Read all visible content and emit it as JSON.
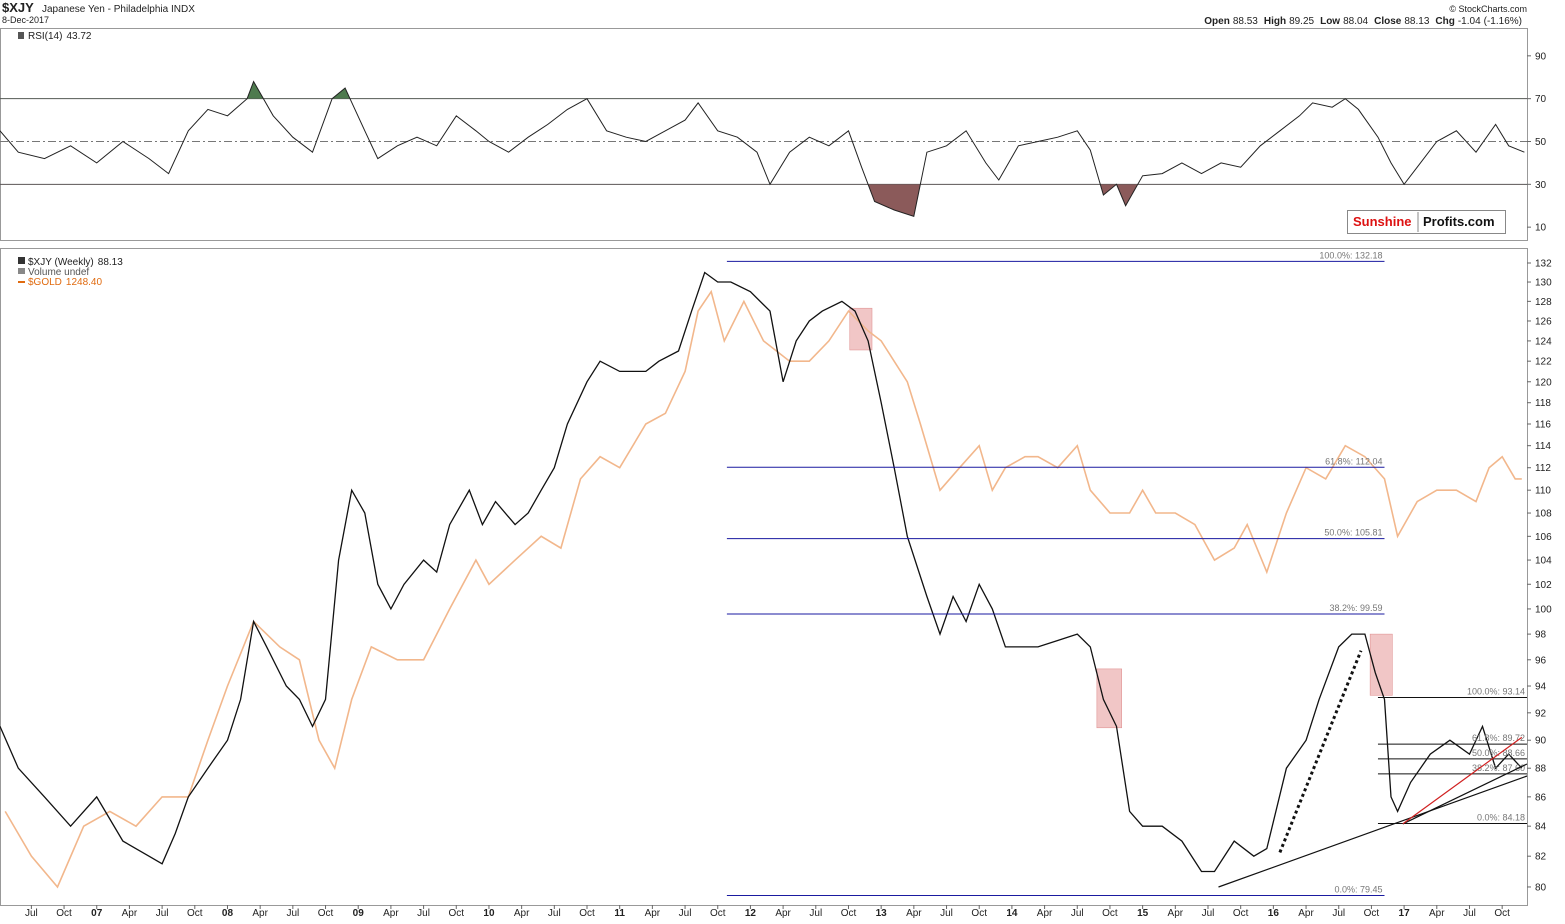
{
  "header": {
    "symbol": "$XJY",
    "name": "Japanese Yen - Philadelphia INDX",
    "date": "8-Dec-2017",
    "quote": [
      {
        "label": "Open",
        "value": 88.53
      },
      {
        "label": "High",
        "value": 89.25
      },
      {
        "label": "Low",
        "value": 88.04
      },
      {
        "label": "Close",
        "value": 88.13
      }
    ],
    "change": {
      "label": "Chg",
      "value": -1.04,
      "pct": "(-1.16%)"
    },
    "credit": "© StockCharts.com",
    "logo": [
      "Sunshine",
      "Profits.com"
    ]
  },
  "chart_data": [
    {
      "type": "line",
      "name": "RSI(14)",
      "last": 43.72,
      "color": "#222222",
      "xlim": [
        2006.26,
        2017.94
      ],
      "ylim": [
        4,
        103
      ],
      "yticks": [
        10,
        30,
        50,
        70,
        90
      ],
      "levels": [
        70,
        30
      ],
      "midline": 50,
      "fill_colors": [
        "#4e7a4e",
        "#8b5a5a"
      ],
      "x": [
        2006.26,
        2006.4,
        2006.6,
        2006.8,
        2007.0,
        2007.2,
        2007.4,
        2007.55,
        2007.7,
        2007.85,
        2008.0,
        2008.15,
        2008.2,
        2008.35,
        2008.5,
        2008.65,
        2008.8,
        2008.9,
        2009.05,
        2009.15,
        2009.3,
        2009.45,
        2009.6,
        2009.75,
        2009.9,
        2010.0,
        2010.15,
        2010.3,
        2010.45,
        2010.6,
        2010.75,
        2010.9,
        2011.05,
        2011.2,
        2011.35,
        2011.5,
        2011.6,
        2011.75,
        2011.9,
        2012.05,
        2012.15,
        2012.3,
        2012.45,
        2012.6,
        2012.75,
        2012.85,
        2012.95,
        2013.1,
        2013.25,
        2013.35,
        2013.5,
        2013.65,
        2013.8,
        2013.9,
        2014.05,
        2014.2,
        2014.35,
        2014.5,
        2014.6,
        2014.7,
        2014.8,
        2014.87,
        2015.0,
        2015.15,
        2015.3,
        2015.45,
        2015.6,
        2015.75,
        2015.9,
        2016.05,
        2016.2,
        2016.3,
        2016.45,
        2016.55,
        2016.65,
        2016.8,
        2016.9,
        2017.0,
        2017.1,
        2017.25,
        2017.4,
        2017.55,
        2017.7,
        2017.8,
        2017.92
      ],
      "values": [
        55,
        45,
        42,
        48,
        40,
        50,
        42,
        35,
        55,
        65,
        62,
        70,
        78,
        62,
        52,
        45,
        70,
        75,
        55,
        42,
        48,
        52,
        48,
        62,
        55,
        50,
        45,
        52,
        58,
        65,
        70,
        55,
        52,
        50,
        55,
        60,
        68,
        55,
        52,
        45,
        30,
        45,
        52,
        48,
        55,
        38,
        22,
        18,
        15,
        45,
        48,
        55,
        40,
        32,
        48,
        50,
        52,
        55,
        46,
        25,
        30,
        20,
        34,
        35,
        40,
        35,
        40,
        38,
        48,
        55,
        62,
        68,
        66,
        70,
        65,
        52,
        40,
        30,
        38,
        50,
        55,
        45,
        58,
        48,
        45
      ]
    },
    {
      "type": "line",
      "log": true,
      "xlim": [
        2006.26,
        2017.94
      ],
      "ylim": [
        78.85,
        133.6
      ],
      "yticks": [
        80,
        82,
        84,
        86,
        88,
        90,
        92,
        94,
        96,
        98,
        100,
        102,
        104,
        106,
        108,
        110,
        112,
        114,
        116,
        118,
        120,
        122,
        124,
        126,
        128,
        130,
        132
      ],
      "xticks": [
        {
          "value": 2006.5,
          "label": "Jul"
        },
        {
          "value": 2006.75,
          "label": "Oct"
        },
        {
          "value": 2007,
          "label": "07"
        },
        {
          "value": 2007.25,
          "label": "Apr"
        },
        {
          "value": 2007.5,
          "label": "Jul"
        },
        {
          "value": 2007.75,
          "label": "Oct"
        },
        {
          "value": 2008,
          "label": "08"
        },
        {
          "value": 2008.25,
          "label": "Apr"
        },
        {
          "value": 2008.5,
          "label": "Jul"
        },
        {
          "value": 2008.75,
          "label": "Oct"
        },
        {
          "value": 2009,
          "label": "09"
        },
        {
          "value": 2009.25,
          "label": "Apr"
        },
        {
          "value": 2009.5,
          "label": "Jul"
        },
        {
          "value": 2009.75,
          "label": "Oct"
        },
        {
          "value": 2010,
          "label": "10"
        },
        {
          "value": 2010.25,
          "label": "Apr"
        },
        {
          "value": 2010.5,
          "label": "Jul"
        },
        {
          "value": 2010.75,
          "label": "Oct"
        },
        {
          "value": 2011,
          "label": "11"
        },
        {
          "value": 2011.25,
          "label": "Apr"
        },
        {
          "value": 2011.5,
          "label": "Jul"
        },
        {
          "value": 2011.75,
          "label": "Oct"
        },
        {
          "value": 2012,
          "label": "12"
        },
        {
          "value": 2012.25,
          "label": "Apr"
        },
        {
          "value": 2012.5,
          "label": "Jul"
        },
        {
          "value": 2012.75,
          "label": "Oct"
        },
        {
          "value": 2013,
          "label": "13"
        },
        {
          "value": 2013.25,
          "label": "Apr"
        },
        {
          "value": 2013.5,
          "label": "Jul"
        },
        {
          "value": 2013.75,
          "label": "Oct"
        },
        {
          "value": 2014,
          "label": "14"
        },
        {
          "value": 2014.25,
          "label": "Apr"
        },
        {
          "value": 2014.5,
          "label": "Jul"
        },
        {
          "value": 2014.75,
          "label": "Oct"
        },
        {
          "value": 2015,
          "label": "15"
        },
        {
          "value": 2015.25,
          "label": "Apr"
        },
        {
          "value": 2015.5,
          "label": "Jul"
        },
        {
          "value": 2015.75,
          "label": "Oct"
        },
        {
          "value": 2016,
          "label": "16"
        },
        {
          "value": 2016.25,
          "label": "Apr"
        },
        {
          "value": 2016.5,
          "label": "Jul"
        },
        {
          "value": 2016.75,
          "label": "Oct"
        },
        {
          "value": 2017,
          "label": "17"
        },
        {
          "value": 2017.25,
          "label": "Apr"
        },
        {
          "value": 2017.5,
          "label": "Jul"
        },
        {
          "value": 2017.75,
          "label": "Oct"
        }
      ],
      "volume_label": "Volume undef",
      "series": [
        {
          "name": "$XJY (Weekly)",
          "last": 88.13,
          "color": "#111111",
          "x": [
            2006.26,
            2006.4,
            2006.6,
            2006.8,
            2007.0,
            2007.2,
            2007.4,
            2007.5,
            2007.6,
            2007.7,
            2007.85,
            2008.0,
            2008.1,
            2008.2,
            2008.3,
            2008.45,
            2008.55,
            2008.65,
            2008.75,
            2008.85,
            2008.95,
            2009.05,
            2009.15,
            2009.25,
            2009.35,
            2009.5,
            2009.6,
            2009.7,
            2009.85,
            2009.95,
            2010.05,
            2010.2,
            2010.3,
            2010.4,
            2010.5,
            2010.6,
            2010.75,
            2010.85,
            2011.0,
            2011.1,
            2011.2,
            2011.3,
            2011.45,
            2011.55,
            2011.65,
            2011.75,
            2011.85,
            2012.0,
            2012.15,
            2012.25,
            2012.35,
            2012.45,
            2012.55,
            2012.7,
            2012.8,
            2012.9,
            2013.0,
            2013.1,
            2013.2,
            2013.35,
            2013.45,
            2013.55,
            2013.65,
            2013.75,
            2013.85,
            2013.95,
            2014.05,
            2014.2,
            2014.35,
            2014.5,
            2014.6,
            2014.7,
            2014.8,
            2014.9,
            2015.0,
            2015.15,
            2015.3,
            2015.45,
            2015.55,
            2015.7,
            2015.85,
            2015.95,
            2016.1,
            2016.25,
            2016.35,
            2016.5,
            2016.6,
            2016.7,
            2016.78,
            2016.85,
            2016.9,
            2016.95,
            2017.05,
            2017.2,
            2017.35,
            2017.5,
            2017.6,
            2017.7,
            2017.8,
            2017.9
          ],
          "values": [
            91,
            88,
            86,
            84,
            86,
            83,
            82,
            81.5,
            83.5,
            86,
            88,
            90,
            93,
            99,
            97,
            94,
            93,
            91,
            93,
            104,
            110,
            108,
            102,
            100,
            102,
            104,
            103,
            107,
            110,
            107,
            109,
            107,
            108,
            110,
            112,
            116,
            120,
            122,
            121,
            121,
            121,
            122,
            123,
            127,
            131,
            130,
            130,
            129,
            127,
            120,
            124,
            126,
            127,
            128,
            127,
            124,
            118,
            112,
            106,
            101,
            98,
            101,
            99,
            102,
            100,
            97,
            97,
            97,
            97.5,
            98,
            97,
            93,
            91,
            85,
            84,
            84,
            83,
            81,
            81,
            83,
            82,
            82.5,
            88,
            90,
            93,
            97,
            98,
            98,
            95,
            93,
            86,
            85,
            87,
            89,
            90,
            89,
            91,
            88,
            89,
            88
          ]
        },
        {
          "name": "$GOLD",
          "last": {
            "value": 1248.4,
            "label": "1248.40"
          },
          "color": "#f2b78c",
          "label_color": "#e06b10",
          "x": [
            2006.3,
            2006.5,
            2006.7,
            2006.9,
            2007.1,
            2007.3,
            2007.5,
            2007.7,
            2007.85,
            2008.0,
            2008.2,
            2008.4,
            2008.55,
            2008.7,
            2008.82,
            2008.95,
            2009.1,
            2009.3,
            2009.5,
            2009.7,
            2009.9,
            2010.0,
            2010.2,
            2010.4,
            2010.55,
            2010.7,
            2010.85,
            2011.0,
            2011.2,
            2011.35,
            2011.5,
            2011.6,
            2011.7,
            2011.8,
            2011.95,
            2012.1,
            2012.3,
            2012.45,
            2012.6,
            2012.75,
            2012.9,
            2013.0,
            2013.2,
            2013.3,
            2013.45,
            2013.6,
            2013.75,
            2013.85,
            2013.95,
            2014.1,
            2014.2,
            2014.35,
            2014.5,
            2014.6,
            2014.75,
            2014.9,
            2015.0,
            2015.1,
            2015.25,
            2015.4,
            2015.55,
            2015.7,
            2015.8,
            2015.95,
            2016.1,
            2016.25,
            2016.4,
            2016.55,
            2016.7,
            2016.85,
            2016.95,
            2017.1,
            2017.25,
            2017.4,
            2017.55,
            2017.65,
            2017.75,
            2017.85,
            2017.9
          ],
          "values": [
            85,
            82,
            80,
            84,
            85,
            84,
            86,
            86,
            90,
            94,
            99,
            97,
            96,
            90,
            88,
            93,
            97,
            96,
            96,
            100,
            104,
            102,
            104,
            106,
            105,
            111,
            113,
            112,
            116,
            117,
            121,
            127,
            129,
            124,
            128,
            124,
            122,
            122,
            124,
            127,
            125,
            124,
            120,
            116,
            110,
            112,
            114,
            110,
            112,
            113,
            113,
            112,
            114,
            110,
            108,
            108,
            110,
            108,
            108,
            107,
            104,
            105,
            107,
            103,
            108,
            112,
            111,
            114,
            113,
            111,
            106,
            109,
            110,
            110,
            109,
            112,
            113,
            111,
            111
          ]
        }
      ],
      "fib_levels": [
        {
          "label": "100.0%: 132.18",
          "value": 132.18,
          "x": [
            2011.82,
            2016.85
          ],
          "color": "#1a1aa0"
        },
        {
          "label": "61.8%: 112.04",
          "value": 112.04,
          "x": [
            2011.82,
            2016.85
          ],
          "color": "#1a1aa0"
        },
        {
          "label": "50.0%: 105.81",
          "value": 105.81,
          "x": [
            2011.82,
            2016.85
          ],
          "color": "#1a1aa0"
        },
        {
          "label": "38.2%: 99.59",
          "value": 99.59,
          "x": [
            2011.82,
            2016.85
          ],
          "color": "#1a1aa0"
        },
        {
          "label": "0.0%: 79.45",
          "value": 79.45,
          "x": [
            2011.82,
            2016.85
          ],
          "color": "#1a1aa0"
        },
        {
          "label": "100.0%: 93.14",
          "value": 93.14,
          "x": [
            2016.8,
            2017.94
          ],
          "color": "#111111"
        },
        {
          "label": "61.8%: 89.72",
          "value": 89.72,
          "x": [
            2016.8,
            2017.94
          ],
          "color": "#111111"
        },
        {
          "label": "50.0%: 88.66",
          "value": 88.66,
          "x": [
            2016.8,
            2017.94
          ],
          "color": "#111111"
        },
        {
          "label": "38.2%: 87.60",
          "value": 87.6,
          "x": [
            2016.8,
            2017.94
          ],
          "color": "#111111"
        },
        {
          "label": "0.0%: 84.18",
          "value": 84.18,
          "x": [
            2016.8,
            2017.94
          ],
          "color": "#111111"
        }
      ],
      "trendlines": [
        {
          "x": [
            2015.58,
            2017.94
          ],
          "values": [
            80,
            87.45
          ],
          "color": "#111111",
          "style": "solid"
        },
        {
          "x": [
            2016.99,
            2017.94
          ],
          "values": [
            84.15,
            88.3
          ],
          "color": "#111111",
          "style": "solid"
        },
        {
          "x": [
            2016.99,
            2017.9
          ],
          "values": [
            84.15,
            90.2
          ],
          "color": "#d02020",
          "style": "solid"
        },
        {
          "x": [
            2016.05,
            2016.67
          ],
          "values": [
            82.25,
            96.7
          ],
          "color": "#111111",
          "style": "dotted"
        }
      ],
      "highlight_color": "#e8a0a0",
      "highlights": [
        {
          "x": [
            2012.76,
            2012.93
          ],
          "values": [
            127.3,
            123.1
          ]
        },
        {
          "x": [
            2014.65,
            2014.84
          ],
          "values": [
            95.3,
            90.9
          ]
        },
        {
          "x": [
            2016.74,
            2016.91
          ],
          "values": [
            98.0,
            93.3
          ]
        }
      ]
    }
  ]
}
